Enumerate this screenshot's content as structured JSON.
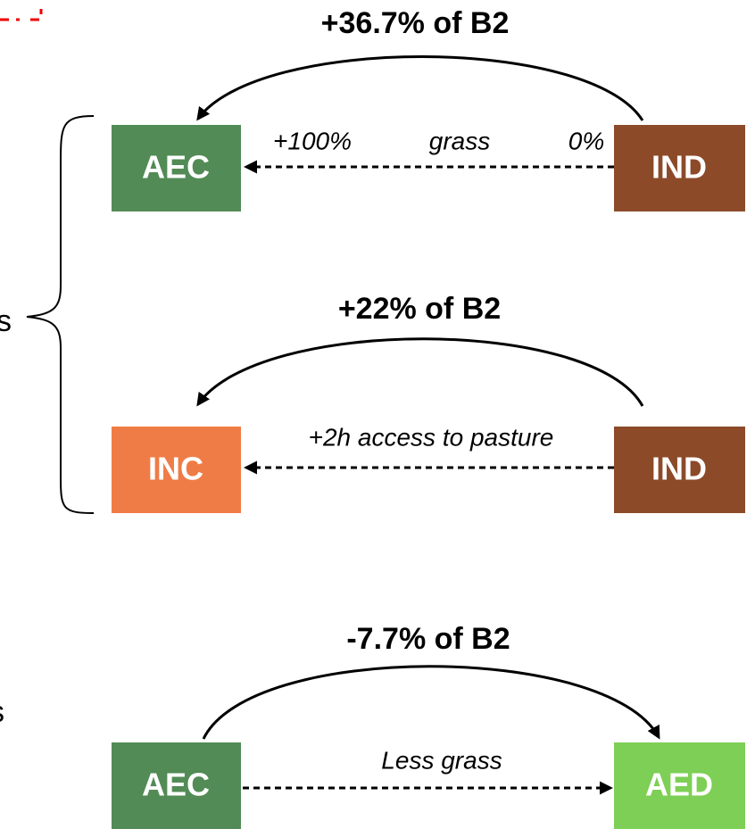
{
  "side_labels": [
    "s",
    "s"
  ],
  "links": [
    {
      "title": "+36.7% of B2",
      "from": "IND",
      "to": "AEC",
      "notes": [
        "+100%",
        "grass",
        "0%"
      ]
    },
    {
      "title": "+22% of B2",
      "from": "IND",
      "to": "INC",
      "notes": [
        "+2h access to pasture"
      ]
    },
    {
      "title": "-7.7% of B2",
      "from": "AEC",
      "to": "AED",
      "notes": [
        "Less grass"
      ]
    }
  ]
}
